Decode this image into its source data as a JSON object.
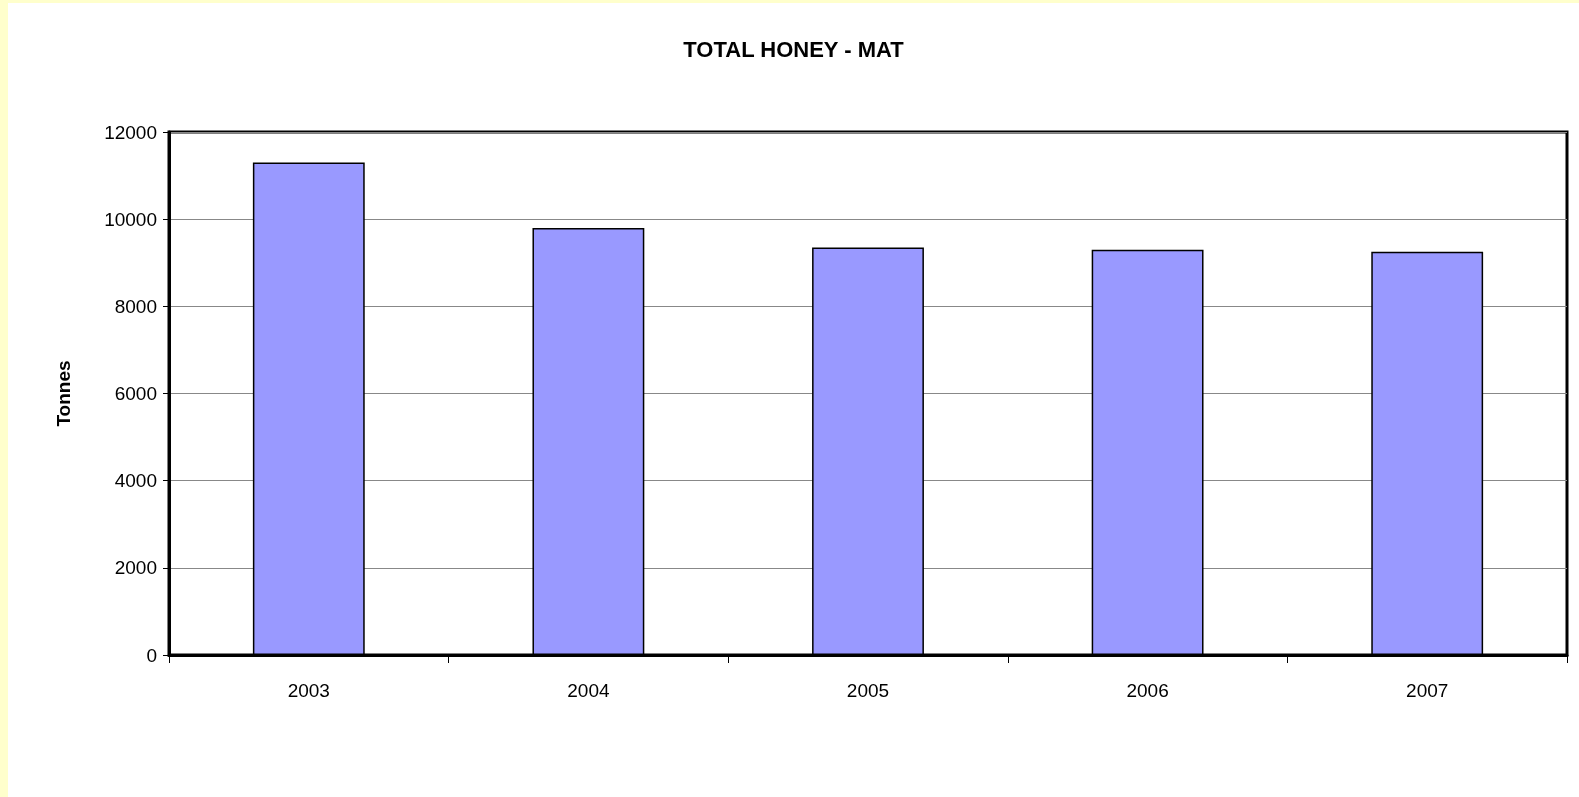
{
  "chart_data": {
    "type": "bar",
    "title": "TOTAL HONEY - MAT",
    "ylabel": "Tonnes",
    "categories": [
      "2003",
      "2004",
      "2005",
      "2006",
      "2007"
    ],
    "values": [
      11300,
      9800,
      9350,
      9300,
      9250
    ],
    "color": "#9999ff",
    "ylim": [
      0,
      12000
    ],
    "yticks": [
      0,
      2000,
      4000,
      6000,
      8000,
      10000,
      12000
    ],
    "grid": "y"
  }
}
